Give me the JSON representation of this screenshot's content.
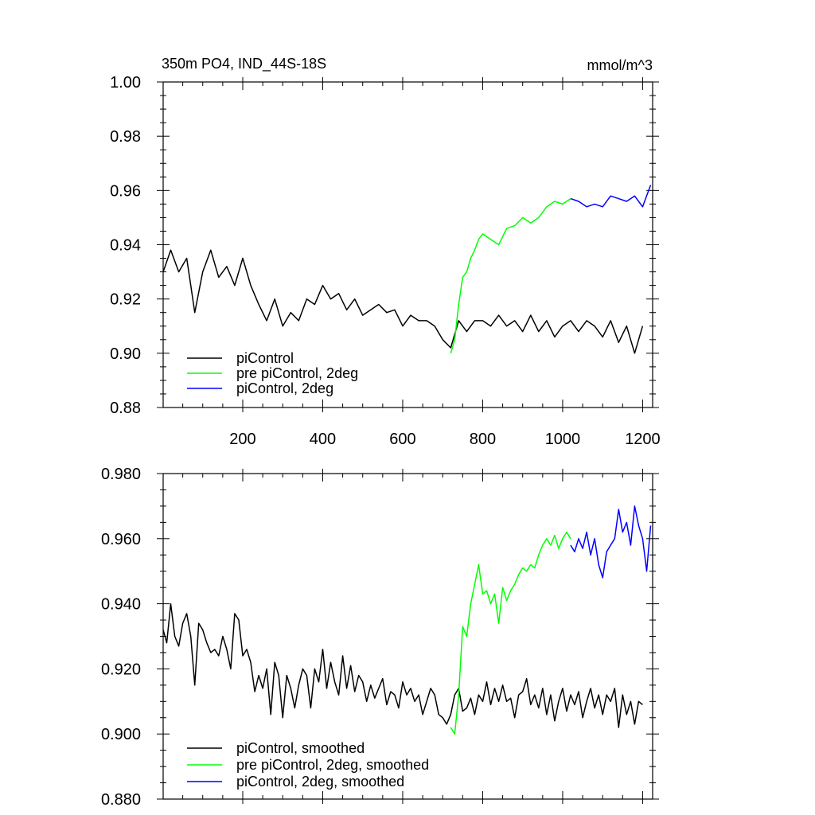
{
  "chart_data": [
    {
      "type": "line",
      "title_left": "350m PO4, IND_44S-18S",
      "title_right": "mmol/m^3",
      "xlim": [
        1,
        1225
      ],
      "ylim": [
        0.88,
        1.0
      ],
      "x_ticks": [
        200,
        400,
        600,
        800,
        1000,
        1200
      ],
      "x_tick_labels": [
        "200",
        "400",
        "600",
        "800",
        "1000",
        "1200"
      ],
      "y_ticks": [
        0.88,
        0.9,
        0.92,
        0.94,
        0.96,
        0.98,
        1.0
      ],
      "y_tick_labels": [
        "0.88",
        "0.90",
        "0.92",
        "0.94",
        "0.96",
        "0.98",
        "1.00"
      ],
      "grid": false,
      "legend_position": "bottom-left",
      "series": [
        {
          "name": "piControl",
          "color": "#000000",
          "x": [
            1,
            20,
            40,
            60,
            70,
            80,
            100,
            120,
            140,
            160,
            180,
            200,
            220,
            240,
            260,
            280,
            300,
            320,
            340,
            360,
            380,
            400,
            420,
            440,
            460,
            480,
            500,
            520,
            540,
            560,
            580,
            600,
            620,
            640,
            660,
            680,
            700,
            720,
            740,
            760,
            780,
            800,
            820,
            840,
            860,
            880,
            900,
            920,
            940,
            960,
            980,
            1000,
            1020,
            1040,
            1060,
            1080,
            1100,
            1120,
            1140,
            1160,
            1180,
            1200
          ],
          "y": [
            0.93,
            0.938,
            0.93,
            0.935,
            0.925,
            0.915,
            0.93,
            0.938,
            0.928,
            0.932,
            0.925,
            0.935,
            0.925,
            0.918,
            0.912,
            0.92,
            0.91,
            0.915,
            0.912,
            0.92,
            0.918,
            0.925,
            0.92,
            0.922,
            0.916,
            0.92,
            0.914,
            0.916,
            0.918,
            0.915,
            0.916,
            0.91,
            0.914,
            0.912,
            0.912,
            0.91,
            0.905,
            0.902,
            0.912,
            0.908,
            0.912,
            0.912,
            0.91,
            0.914,
            0.91,
            0.912,
            0.908,
            0.914,
            0.908,
            0.912,
            0.906,
            0.91,
            0.912,
            0.908,
            0.912,
            0.91,
            0.906,
            0.912,
            0.904,
            0.91,
            0.9,
            0.91
          ]
        },
        {
          "name": "pre piControl, 2deg",
          "color": "#00ff00",
          "x": [
            720,
            730,
            740,
            750,
            760,
            770,
            780,
            790,
            800,
            820,
            840,
            860,
            880,
            900,
            920,
            940,
            960,
            980,
            1000,
            1020
          ],
          "y": [
            0.9,
            0.905,
            0.918,
            0.928,
            0.93,
            0.935,
            0.938,
            0.942,
            0.944,
            0.942,
            0.94,
            0.946,
            0.947,
            0.95,
            0.948,
            0.95,
            0.954,
            0.956,
            0.955,
            0.957
          ]
        },
        {
          "name": "piControl, 2deg",
          "color": "#0000ff",
          "x": [
            1020,
            1040,
            1060,
            1080,
            1100,
            1120,
            1140,
            1160,
            1180,
            1200,
            1220
          ],
          "y": [
            0.957,
            0.956,
            0.954,
            0.955,
            0.954,
            0.958,
            0.957,
            0.956,
            0.958,
            0.954,
            0.962
          ]
        }
      ]
    },
    {
      "type": "line",
      "xlim": [
        1,
        1225
      ],
      "ylim": [
        0.88,
        0.98
      ],
      "x_ticks": [
        200,
        400,
        600,
        800,
        1000,
        1200
      ],
      "y_ticks": [
        0.88,
        0.9,
        0.92,
        0.94,
        0.96,
        0.98
      ],
      "y_tick_labels": [
        "0.880",
        "0.900",
        "0.920",
        "0.940",
        "0.960",
        "0.980"
      ],
      "grid": false,
      "legend_position": "bottom-left",
      "series": [
        {
          "name": "piControl, smoothed",
          "color": "#000000",
          "x": [
            1,
            10,
            20,
            30,
            40,
            50,
            60,
            70,
            80,
            90,
            100,
            110,
            120,
            130,
            140,
            150,
            160,
            170,
            180,
            190,
            200,
            210,
            220,
            230,
            240,
            250,
            260,
            270,
            280,
            290,
            300,
            310,
            320,
            330,
            340,
            350,
            360,
            370,
            380,
            390,
            400,
            410,
            420,
            430,
            440,
            450,
            460,
            470,
            480,
            490,
            500,
            510,
            520,
            530,
            540,
            550,
            560,
            570,
            580,
            590,
            600,
            610,
            620,
            630,
            640,
            650,
            660,
            670,
            680,
            690,
            700,
            710,
            720,
            730,
            740,
            750,
            760,
            770,
            780,
            790,
            800,
            810,
            820,
            830,
            840,
            850,
            860,
            870,
            880,
            890,
            900,
            910,
            920,
            930,
            940,
            950,
            960,
            970,
            980,
            990,
            1000,
            1010,
            1020,
            1030,
            1040,
            1050,
            1060,
            1070,
            1080,
            1090,
            1100,
            1110,
            1120,
            1130,
            1140,
            1150,
            1160,
            1170,
            1180,
            1190,
            1200
          ],
          "y": [
            0.932,
            0.928,
            0.94,
            0.93,
            0.927,
            0.934,
            0.937,
            0.93,
            0.915,
            0.934,
            0.932,
            0.928,
            0.925,
            0.926,
            0.924,
            0.93,
            0.926,
            0.92,
            0.937,
            0.935,
            0.924,
            0.926,
            0.922,
            0.913,
            0.918,
            0.914,
            0.92,
            0.906,
            0.922,
            0.918,
            0.905,
            0.918,
            0.914,
            0.908,
            0.915,
            0.92,
            0.918,
            0.908,
            0.92,
            0.916,
            0.926,
            0.914,
            0.922,
            0.916,
            0.912,
            0.924,
            0.914,
            0.921,
            0.913,
            0.918,
            0.916,
            0.91,
            0.915,
            0.911,
            0.914,
            0.917,
            0.909,
            0.913,
            0.912,
            0.908,
            0.916,
            0.912,
            0.914,
            0.91,
            0.912,
            0.906,
            0.91,
            0.914,
            0.912,
            0.906,
            0.905,
            0.903,
            0.906,
            0.912,
            0.914,
            0.907,
            0.908,
            0.911,
            0.906,
            0.912,
            0.91,
            0.916,
            0.909,
            0.914,
            0.91,
            0.915,
            0.91,
            0.911,
            0.905,
            0.912,
            0.913,
            0.917,
            0.909,
            0.912,
            0.908,
            0.914,
            0.906,
            0.912,
            0.904,
            0.91,
            0.914,
            0.907,
            0.912,
            0.909,
            0.913,
            0.905,
            0.91,
            0.914,
            0.908,
            0.912,
            0.906,
            0.912,
            0.91,
            0.914,
            0.902,
            0.912,
            0.906,
            0.91,
            0.903,
            0.91,
            0.909
          ]
        },
        {
          "name": "pre piControl, 2deg, smoothed",
          "color": "#00ff00",
          "x": [
            720,
            730,
            740,
            750,
            760,
            770,
            780,
            790,
            800,
            810,
            820,
            830,
            840,
            850,
            860,
            870,
            880,
            890,
            900,
            910,
            920,
            930,
            940,
            950,
            960,
            970,
            980,
            990,
            1000,
            1010,
            1020
          ],
          "y": [
            0.902,
            0.9,
            0.912,
            0.933,
            0.93,
            0.94,
            0.946,
            0.952,
            0.943,
            0.944,
            0.94,
            0.943,
            0.934,
            0.945,
            0.941,
            0.944,
            0.946,
            0.949,
            0.951,
            0.95,
            0.952,
            0.951,
            0.955,
            0.958,
            0.96,
            0.958,
            0.961,
            0.957,
            0.96,
            0.962,
            0.96
          ]
        },
        {
          "name": "piControl, 2deg, smoothed",
          "color": "#0000ff",
          "x": [
            1020,
            1030,
            1040,
            1050,
            1060,
            1070,
            1080,
            1090,
            1100,
            1110,
            1120,
            1130,
            1140,
            1150,
            1160,
            1170,
            1180,
            1190,
            1200,
            1210,
            1220
          ],
          "y": [
            0.958,
            0.956,
            0.96,
            0.957,
            0.962,
            0.955,
            0.96,
            0.952,
            0.948,
            0.956,
            0.958,
            0.96,
            0.969,
            0.962,
            0.965,
            0.958,
            0.97,
            0.964,
            0.96,
            0.95,
            0.964
          ]
        }
      ]
    }
  ]
}
